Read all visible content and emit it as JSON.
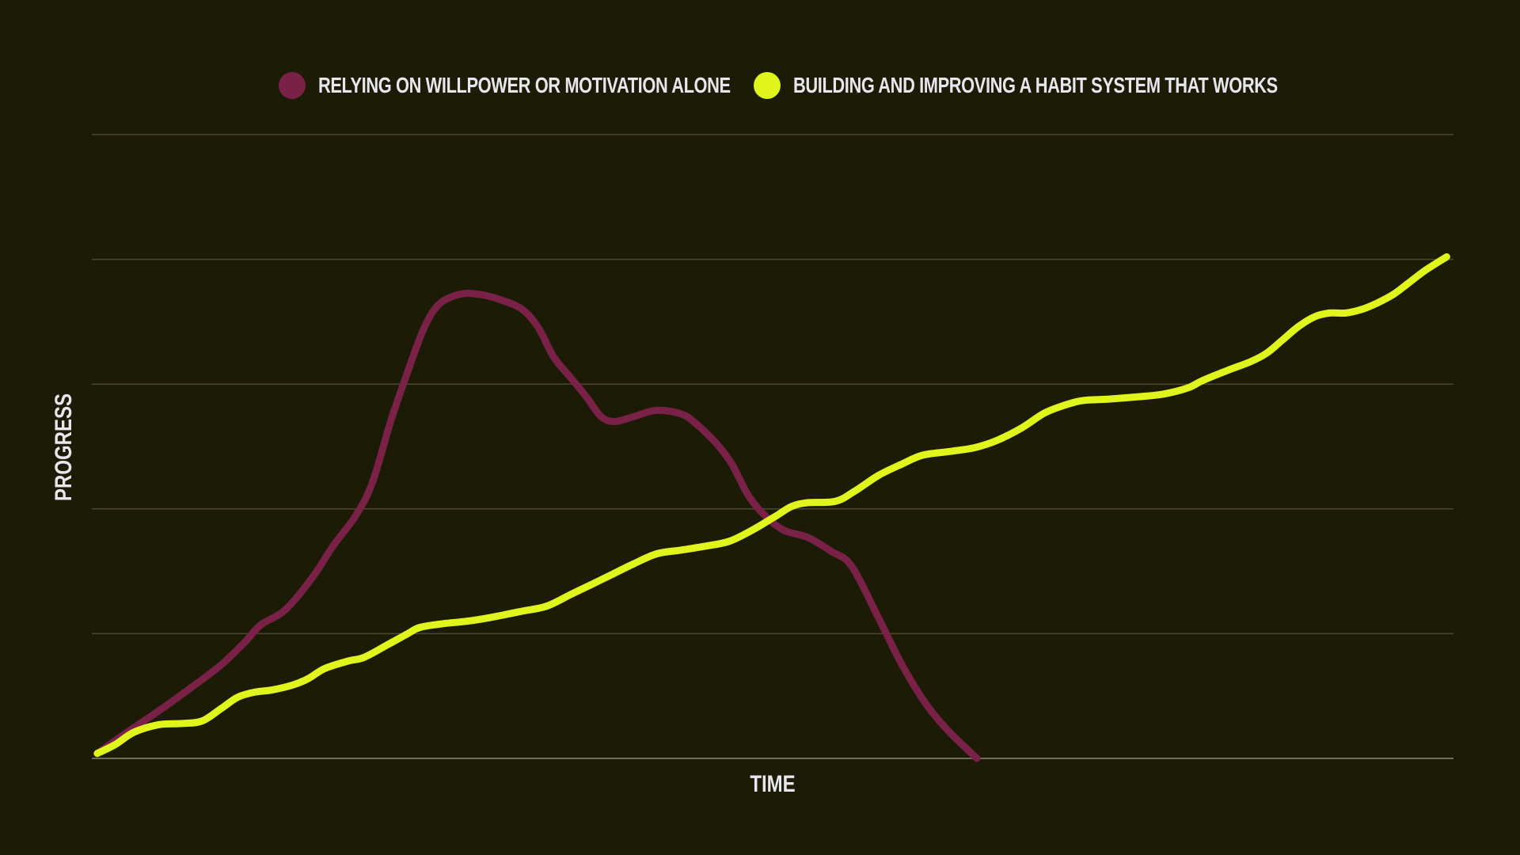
{
  "chart_data": {
    "type": "line",
    "title": "",
    "xlabel": "TIME",
    "ylabel": "PROGRESS",
    "xlim": [
      0,
      100
    ],
    "ylim": [
      0,
      5
    ],
    "grid": true,
    "y_gridlines": [
      0,
      1,
      2,
      3,
      4,
      5
    ],
    "legend_position": "top-center",
    "series": [
      {
        "name": "RELYING ON WILLPOWER OR MOTIVATION ALONE",
        "color": "#7a2148",
        "x": [
          0.4,
          2.6,
          4.9,
          7.2,
          9.5,
          11.3,
          12.4,
          14.2,
          16.2,
          17.7,
          19.4,
          20.6,
          22.0,
          23.2,
          24.4,
          25.5,
          27.0,
          28.4,
          29.9,
          31.6,
          32.8,
          33.9,
          35.1,
          36.3,
          37.4,
          38.4,
          39.8,
          41.5,
          43.3,
          44.4,
          45.9,
          47.0,
          48.2,
          49.4,
          50.8,
          52.6,
          54.3,
          55.8,
          57.8,
          59.5,
          61.3,
          63.0,
          65.0
        ],
        "y": [
          0.04,
          0.21,
          0.38,
          0.56,
          0.75,
          0.94,
          1.07,
          1.19,
          1.45,
          1.7,
          1.95,
          2.21,
          2.72,
          3.1,
          3.45,
          3.64,
          3.72,
          3.72,
          3.68,
          3.6,
          3.45,
          3.22,
          3.06,
          2.9,
          2.74,
          2.7,
          2.74,
          2.79,
          2.76,
          2.68,
          2.52,
          2.36,
          2.11,
          1.95,
          1.83,
          1.77,
          1.66,
          1.54,
          1.12,
          0.75,
          0.43,
          0.21,
          0.0
        ]
      },
      {
        "name": "BUILDING AND IMPROVING A HABIT SYSTEM THAT WORKS",
        "color": "#e0f51c",
        "x": [
          0.4,
          1.7,
          3.1,
          4.9,
          6.6,
          8.1,
          9.5,
          10.7,
          11.9,
          13.3,
          14.8,
          15.9,
          17.1,
          18.8,
          20.0,
          21.7,
          23.2,
          24.1,
          25.8,
          27.6,
          29.3,
          31.6,
          33.4,
          35.1,
          36.8,
          38.3,
          39.8,
          41.5,
          43.3,
          45.0,
          46.8,
          48.5,
          50.2,
          51.4,
          52.6,
          54.6,
          56.0,
          57.8,
          59.5,
          61.0,
          63.0,
          64.8,
          66.5,
          68.3,
          70.0,
          71.7,
          72.9,
          74.7,
          77.0,
          78.7,
          80.5,
          81.6,
          83.4,
          85.1,
          86.3,
          87.4,
          88.6,
          89.8,
          90.9,
          92.1,
          93.3,
          94.4,
          95.6,
          96.7,
          97.9,
          99.5
        ],
        "y": [
          0.04,
          0.11,
          0.21,
          0.27,
          0.28,
          0.3,
          0.4,
          0.49,
          0.53,
          0.55,
          0.59,
          0.64,
          0.72,
          0.78,
          0.81,
          0.91,
          1.0,
          1.05,
          1.08,
          1.1,
          1.13,
          1.18,
          1.22,
          1.31,
          1.4,
          1.48,
          1.56,
          1.64,
          1.67,
          1.7,
          1.74,
          1.83,
          1.94,
          2.02,
          2.05,
          2.06,
          2.14,
          2.27,
          2.36,
          2.43,
          2.46,
          2.49,
          2.55,
          2.65,
          2.77,
          2.84,
          2.87,
          2.88,
          2.9,
          2.92,
          2.97,
          3.03,
          3.11,
          3.18,
          3.25,
          3.35,
          3.46,
          3.54,
          3.57,
          3.57,
          3.6,
          3.65,
          3.72,
          3.81,
          3.91,
          4.02
        ]
      }
    ]
  },
  "colors": {
    "background": "#1c1b05",
    "gridline": "#4b4a30",
    "baseline": "#6e6d58",
    "text": "#e6e6ec"
  }
}
